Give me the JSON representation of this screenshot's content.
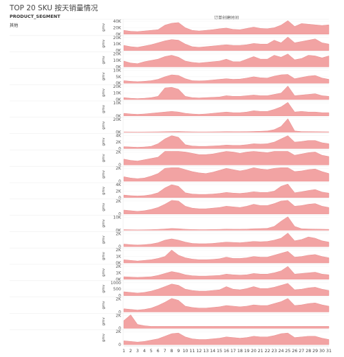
{
  "title": "TOP 20 SKU 按天销量情况",
  "segment_header": "PRODUCT_SEGMENT",
  "colors": {
    "area": "#f2a3a3",
    "line": "#e88e8e",
    "grid": "#e6e6e6",
    "divider": "#eeeeee"
  },
  "chart_data": {
    "type": "area",
    "title": "TOP 20 SKU 按天销量情况",
    "xlabel": "订单创建时间",
    "ylabel": "gmv",
    "x": [
      1,
      2,
      3,
      4,
      5,
      6,
      7,
      8,
      9,
      10,
      11,
      12,
      13,
      14,
      15,
      16,
      17,
      18,
      19,
      20,
      21,
      22,
      23,
      24,
      25,
      26,
      27,
      28,
      29,
      30,
      31
    ],
    "series": [
      {
        "name": "其他",
        "ticks": [
          0,
          20000,
          40000
        ],
        "tick_labels": [
          "0K",
          "20K",
          "40K"
        ],
        "values": [
          12000,
          9000,
          8000,
          10000,
          12000,
          14000,
          28000,
          34000,
          36000,
          20000,
          12000,
          10000,
          12000,
          14000,
          17000,
          19000,
          15000,
          14000,
          18000,
          22000,
          18000,
          17000,
          20000,
          28000,
          43000,
          24000,
          33000,
          31000,
          29000,
          27000,
          29000
        ]
      },
      {
        "name": "",
        "ticks": [
          0,
          10000,
          20000
        ],
        "tick_labels": [
          "0K",
          "10K",
          "20K"
        ],
        "values": [
          8000,
          6000,
          5000,
          7000,
          9000,
          12000,
          15000,
          17000,
          16000,
          10000,
          6000,
          5000,
          6000,
          7000,
          8000,
          9000,
          8000,
          8000,
          9000,
          11000,
          10000,
          10000,
          16000,
          12000,
          21000,
          12000,
          14000,
          16000,
          18000,
          12000,
          10000
        ]
      },
      {
        "name": "",
        "ticks": [
          0,
          10000,
          20000
        ],
        "tick_labels": [
          "0K",
          "10K",
          "20K"
        ],
        "values": [
          9000,
          6000,
          5000,
          8000,
          10000,
          12000,
          16000,
          18000,
          15000,
          9000,
          7000,
          6000,
          7000,
          8000,
          9000,
          12000,
          8000,
          8000,
          12000,
          16000,
          12000,
          12000,
          18000,
          15000,
          20000,
          11000,
          13000,
          18000,
          17000,
          14000,
          17000
        ]
      },
      {
        "name": "",
        "ticks": [
          0,
          5000,
          10000
        ],
        "tick_labels": [
          "0K",
          "5K",
          "10K"
        ],
        "values": [
          2000,
          1500,
          1200,
          1500,
          2000,
          3000,
          5000,
          6500,
          6000,
          3500,
          2000,
          1800,
          2000,
          2500,
          3000,
          3500,
          3000,
          3200,
          4000,
          5000,
          4200,
          4000,
          5500,
          6500,
          6800,
          3500,
          4500,
          5500,
          6000,
          4000,
          3000
        ]
      },
      {
        "name": "",
        "ticks": [
          0,
          10000,
          20000
        ],
        "tick_labels": [
          "0K",
          "10K",
          "20K"
        ],
        "values": [
          3000,
          2000,
          1500,
          2000,
          3000,
          5000,
          18000,
          19000,
          16000,
          5000,
          3000,
          2500,
          3000,
          3500,
          4000,
          6000,
          5000,
          5000,
          6000,
          7000,
          6000,
          6000,
          8000,
          10000,
          22000,
          6000,
          7000,
          8000,
          9000,
          6000,
          5000
        ]
      },
      {
        "name": "",
        "ticks": [
          0,
          10000
        ],
        "tick_labels": [
          "0K",
          "10K"
        ],
        "values": [
          2000,
          1500,
          1200,
          1500,
          2000,
          2500,
          3000,
          3500,
          3000,
          2000,
          1500,
          1200,
          1500,
          2000,
          2500,
          3000,
          2500,
          2500,
          3000,
          4000,
          3500,
          3500,
          5000,
          7000,
          13000,
          3000,
          3500,
          3000,
          3000,
          2500,
          2500
        ]
      },
      {
        "name": "",
        "ticks": [
          0,
          20000
        ],
        "tick_labels": [
          "0K",
          "20K"
        ],
        "values": [
          500,
          400,
          300,
          400,
          500,
          600,
          800,
          1000,
          1200,
          800,
          600,
          500,
          500,
          600,
          700,
          900,
          800,
          800,
          900,
          1200,
          1500,
          2000,
          4000,
          9000,
          25000,
          2000,
          1000,
          900,
          800,
          700,
          600
        ]
      },
      {
        "name": "",
        "ticks": [
          0,
          2000,
          4000
        ],
        "tick_labels": [
          "0",
          "2K",
          "4K"
        ],
        "values": [
          600,
          500,
          400,
          500,
          700,
          1500,
          3000,
          4000,
          3500,
          1200,
          800,
          700,
          700,
          800,
          900,
          1100,
          1000,
          1000,
          1200,
          1500,
          1400,
          1500,
          2000,
          3000,
          4000,
          2000,
          2200,
          2500,
          2500,
          1800,
          1500
        ]
      },
      {
        "name": "",
        "ticks": [
          0,
          2000
        ],
        "tick_labels": [
          "0",
          "2K"
        ],
        "values": [
          900,
          700,
          600,
          800,
          1000,
          1200,
          2200,
          2400,
          2300,
          2000,
          1800,
          1600,
          1600,
          1700,
          1900,
          2300,
          2000,
          1800,
          2000,
          2200,
          2000,
          1900,
          2200,
          2500,
          2600,
          1500,
          1700,
          1900,
          2000,
          1500,
          1300
        ]
      },
      {
        "name": "",
        "ticks": [
          0,
          2000
        ],
        "tick_labels": [
          "0",
          "2K"
        ],
        "values": [
          700,
          500,
          400,
          500,
          800,
          1200,
          2000,
          2400,
          2300,
          1800,
          1500,
          1300,
          1200,
          1400,
          1700,
          2000,
          1800,
          1600,
          1800,
          2200,
          1900,
          1800,
          2000,
          2300,
          2500,
          1500,
          1600,
          1800,
          1900,
          1500,
          1200
        ]
      },
      {
        "name": "",
        "ticks": [
          0,
          2000,
          4000
        ],
        "tick_labels": [
          "0",
          "2K",
          "4K"
        ],
        "values": [
          800,
          600,
          500,
          600,
          900,
          1500,
          3000,
          4000,
          3500,
          1500,
          1100,
          1000,
          1000,
          1100,
          1300,
          1600,
          1400,
          1300,
          1500,
          1800,
          1600,
          1600,
          2000,
          3500,
          4500,
          1500,
          1800,
          2200,
          2500,
          1700,
          1400
        ]
      },
      {
        "name": "",
        "ticks": [
          0,
          2000
        ],
        "tick_labels": [
          "0",
          "2K"
        ],
        "values": [
          600,
          500,
          400,
          500,
          700,
          1000,
          1500,
          2500,
          2000,
          1200,
          900,
          800,
          800,
          900,
          1000,
          1200,
          1100,
          1000,
          1200,
          1500,
          1300,
          1300,
          1600,
          2000,
          2200,
          1200,
          1300,
          1500,
          1600,
          1200,
          1000
        ]
      },
      {
        "name": "",
        "ticks": [
          0,
          10000
        ],
        "tick_labels": [
          "0K",
          "10K"
        ],
        "values": [
          500,
          400,
          300,
          400,
          500,
          700,
          1000,
          1400,
          1200,
          800,
          600,
          500,
          500,
          600,
          700,
          900,
          800,
          800,
          900,
          1200,
          1300,
          1500,
          3000,
          7000,
          14000,
          3000,
          1200,
          1000,
          900,
          800,
          700
        ]
      },
      {
        "name": "",
        "ticks": [
          0,
          2000
        ],
        "tick_labels": [
          "0",
          "2K"
        ],
        "values": [
          400,
          300,
          250,
          300,
          400,
          600,
          1000,
          1200,
          1000,
          700,
          500,
          450,
          450,
          500,
          600,
          700,
          650,
          600,
          700,
          800,
          750,
          800,
          1000,
          1300,
          2200,
          900,
          1100,
          1500,
          1300,
          900,
          700
        ]
      },
      {
        "name": "",
        "ticks": [
          0,
          1000,
          2000
        ],
        "tick_labels": [
          "0K",
          "1K",
          "2K"
        ],
        "values": [
          500,
          400,
          300,
          400,
          500,
          700,
          1000,
          2000,
          1200,
          800,
          600,
          500,
          500,
          550,
          650,
          900,
          700,
          700,
          800,
          1000,
          900,
          900,
          1200,
          1500,
          1800,
          900,
          1000,
          1200,
          1300,
          1000,
          800
        ]
      },
      {
        "name": "",
        "ticks": [
          0,
          1000,
          2000
        ],
        "tick_labels": [
          "0K",
          "1K",
          "2K"
        ],
        "values": [
          400,
          350,
          300,
          350,
          400,
          600,
          900,
          1200,
          1000,
          700,
          550,
          500,
          500,
          550,
          600,
          800,
          700,
          650,
          700,
          900,
          800,
          800,
          1000,
          1300,
          2000,
          800,
          900,
          1000,
          1100,
          800,
          700
        ]
      },
      {
        "name": "",
        "ticks": [
          0,
          500,
          1000
        ],
        "tick_labels": [
          "0",
          "500",
          "1000"
        ],
        "values": [
          300,
          250,
          200,
          250,
          350,
          500,
          700,
          900,
          800,
          500,
          400,
          350,
          350,
          400,
          450,
          700,
          500,
          450,
          550,
          700,
          550,
          550,
          650,
          800,
          950,
          450,
          500,
          600,
          650,
          500,
          400
        ]
      },
      {
        "name": "",
        "ticks": [
          0,
          2000
        ],
        "tick_labels": [
          "0",
          "2K"
        ],
        "values": [
          500,
          400,
          300,
          400,
          600,
          1000,
          1500,
          2800,
          1800,
          900,
          700,
          600,
          600,
          700,
          800,
          1000,
          900,
          800,
          900,
          1100,
          1000,
          1000,
          1300,
          1600,
          2500,
          1000,
          1100,
          1300,
          1400,
          1100,
          900
        ]
      },
      {
        "name": "",
        "ticks": [
          0,
          2000
        ],
        "tick_labels": [
          "0",
          "2K"
        ],
        "values": [
          1200,
          3000,
          600,
          400,
          300,
          300,
          300,
          300,
          300,
          300,
          300,
          300,
          300,
          300,
          300,
          300,
          300,
          300,
          300,
          300,
          300,
          300,
          300,
          300,
          300,
          300,
          300,
          300,
          300,
          300,
          300
        ]
      },
      {
        "name": "",
        "ticks": [
          0,
          2000
        ],
        "tick_labels": [
          "0",
          "2K"
        ],
        "values": [
          600,
          500,
          400,
          500,
          700,
          900,
          1300,
          1700,
          1800,
          1200,
          900,
          800,
          800,
          900,
          1000,
          1200,
          1100,
          1000,
          1100,
          1300,
          1200,
          1200,
          1400,
          1700,
          1800,
          1100,
          1200,
          1300,
          1300,
          1000,
          800
        ]
      }
    ]
  }
}
